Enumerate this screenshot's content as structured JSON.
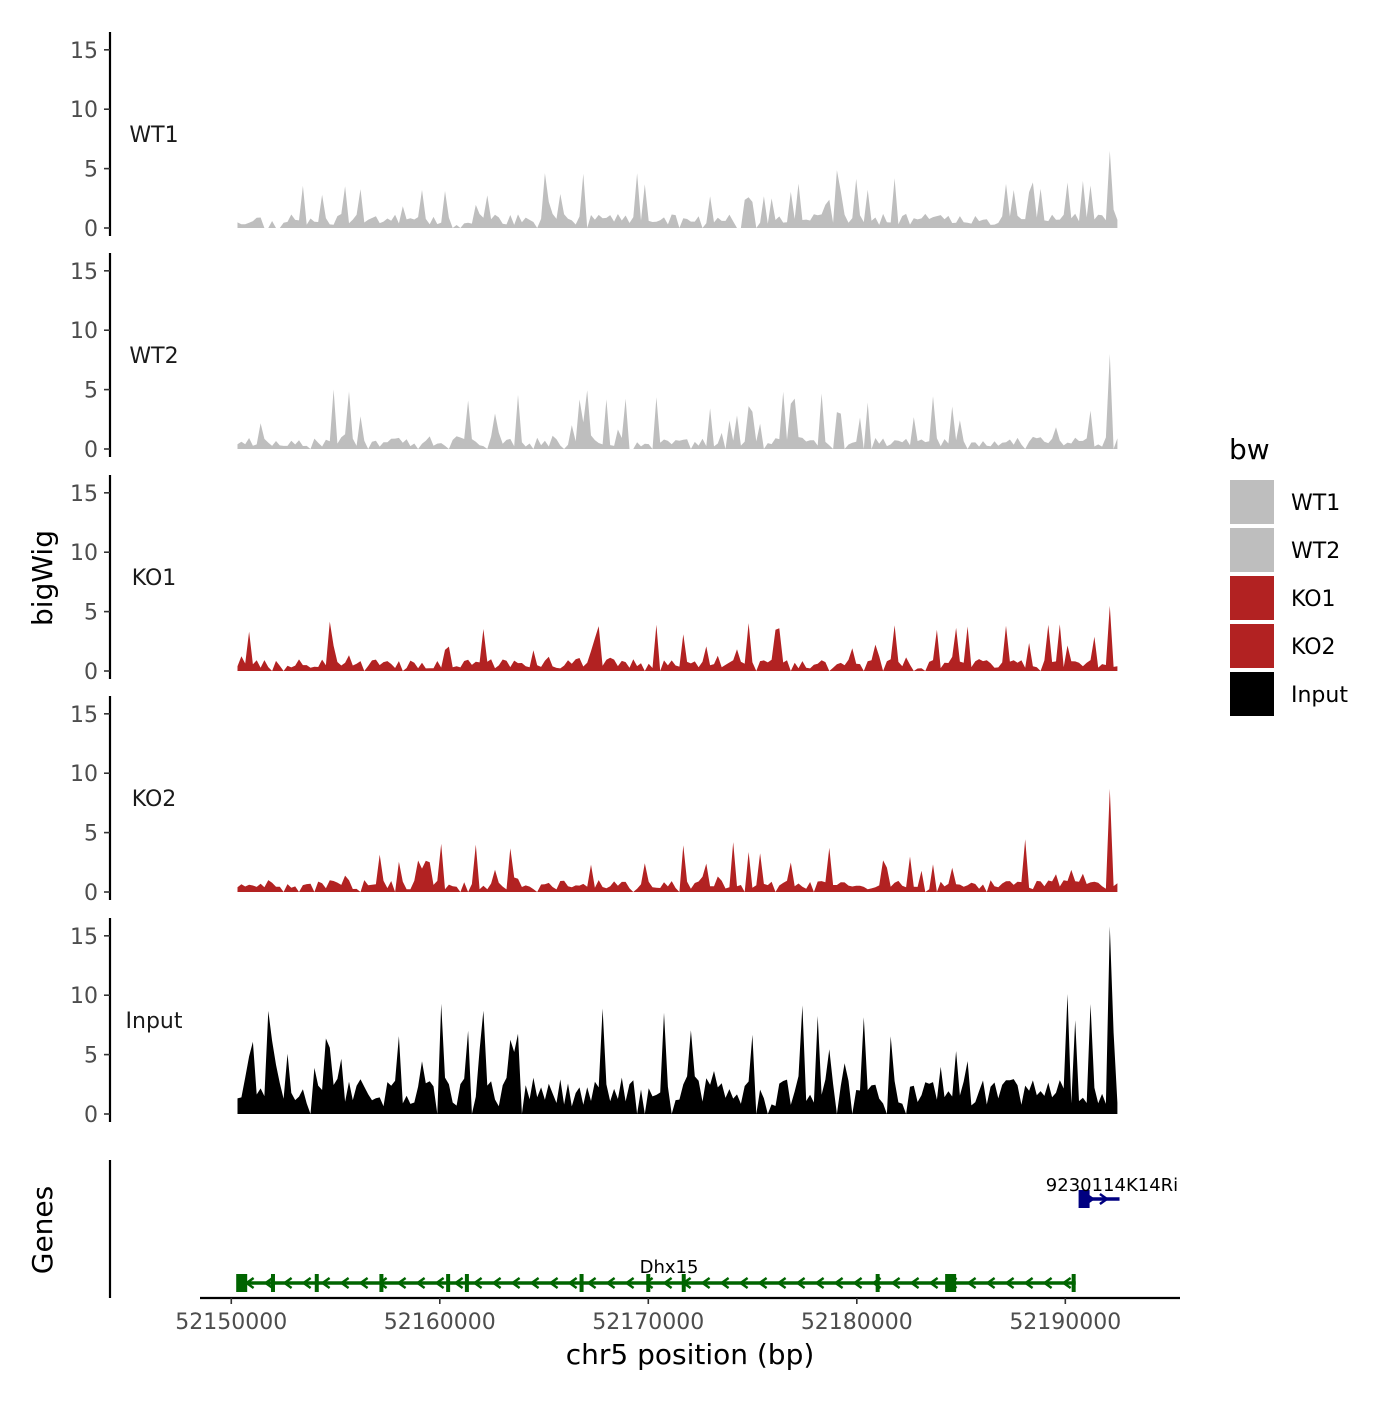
{
  "chart_data": {
    "type": "area",
    "title": "",
    "ylabel": "bigWig",
    "xlabel": "chr5 position (bp)",
    "genes_label": "Genes",
    "xlim": [
      52148500,
      52195500
    ],
    "ylim": [
      0,
      16.5
    ],
    "y_ticks": [
      0,
      5,
      10,
      15
    ],
    "y_tick_labels": [
      "0",
      "5",
      "10",
      "15"
    ],
    "x_ticks": [
      52150000,
      52160000,
      52170000,
      52180000,
      52190000
    ],
    "x_tick_labels": [
      "52150000",
      "52160000",
      "52170000",
      "52180000",
      "52190000"
    ],
    "legend": {
      "title": "bw",
      "position": "right",
      "entries": [
        {
          "label": "WT1",
          "color": "#bebebe"
        },
        {
          "label": "WT2",
          "color": "#bebebe"
        },
        {
          "label": "KO1",
          "color": "#b22222"
        },
        {
          "label": "KO2",
          "color": "#b22222"
        },
        {
          "label": "Input",
          "color": "#000000"
        }
      ]
    },
    "series": [
      {
        "name": "WT1",
        "color": "#bebebe",
        "x_range": [
          52150300,
          52192500
        ],
        "seed": 11,
        "base": 1.2,
        "spike_max": 3.8,
        "max": 6.5
      },
      {
        "name": "WT2",
        "color": "#bebebe",
        "x_range": [
          52150300,
          52192500
        ],
        "seed": 23,
        "base": 1.0,
        "spike_max": 4.2,
        "max": 8.0
      },
      {
        "name": "KO1",
        "color": "#b22222",
        "x_range": [
          52150300,
          52192500
        ],
        "seed": 37,
        "base": 1.0,
        "spike_max": 3.5,
        "max": 5.5
      },
      {
        "name": "KO2",
        "color": "#b22222",
        "x_range": [
          52150300,
          52192500
        ],
        "seed": 51,
        "base": 1.0,
        "spike_max": 3.6,
        "max": 8.7
      },
      {
        "name": "Input",
        "color": "#000000",
        "x_range": [
          52150300,
          52192500
        ],
        "seed": 71,
        "base": 3.2,
        "spike_max": 7.0,
        "max": 15.8
      }
    ],
    "genes": [
      {
        "name": "Dhx15",
        "start": 52150400,
        "end": 52190500,
        "strand": "-",
        "color": "#006400",
        "exons": [
          52150500,
          52152000,
          52154100,
          52157200,
          52160400,
          52161300,
          52166800,
          52170000,
          52171700,
          52181000,
          52184500,
          52190400
        ]
      },
      {
        "name": "9230114K14Ri",
        "start": 52190700,
        "end": 52192600,
        "strand": "+",
        "color": "#000080",
        "exons": [
          52190900
        ]
      }
    ]
  }
}
